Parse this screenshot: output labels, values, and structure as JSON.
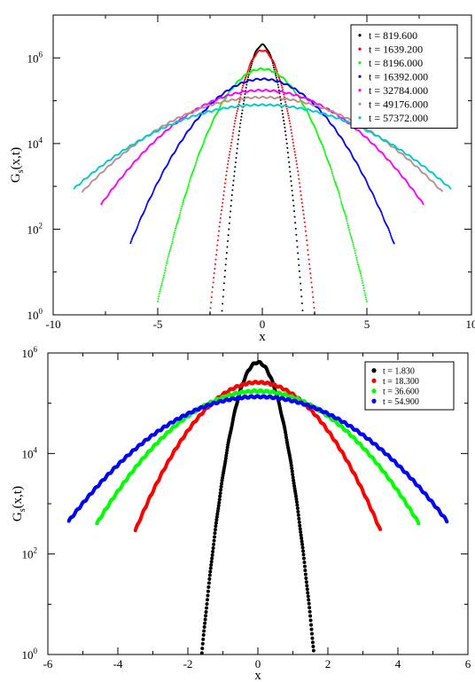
{
  "chart_data": [
    {
      "type": "scatter",
      "xlabel": "x",
      "ylabel": "G_s(x,t)",
      "ylabel_main": "G",
      "ylabel_sub": "s",
      "ylabel_rest": "(x,t)",
      "xlim": [
        -10,
        10
      ],
      "ylim": [
        1,
        10000000
      ],
      "yscale": "log",
      "grid": false,
      "legend_position": "top-right",
      "x_ticks": [
        -10,
        -5,
        0,
        5,
        10
      ],
      "x_tick_labels": [
        "-10",
        "-5",
        "0",
        "5",
        "10"
      ],
      "y_ticks": [
        1,
        100,
        10000,
        1000000
      ],
      "y_tick_labels": [
        "10",
        "10",
        "10",
        "10"
      ],
      "y_tick_exponents": [
        "0",
        "2",
        "4",
        "6"
      ],
      "series": [
        {
          "name": "t = 819.600",
          "color": "#000000",
          "peak": 2000000,
          "sigma": 0.36,
          "xmax": 2.8
        },
        {
          "name": "t = 1639.200",
          "color": "#ff0000",
          "peak": 1500000,
          "sigma": 0.47,
          "xmax": 3.3
        },
        {
          "name": "t = 8196.000",
          "color": "#00ff00",
          "peak": 550000,
          "sigma": 1.0,
          "xmax": 5.0
        },
        {
          "name": "t = 16392.000",
          "color": "#0000ff",
          "peak": 320000,
          "sigma": 1.5,
          "xmax": 6.3
        },
        {
          "name": "t = 32784.000",
          "color": "#ff00ff",
          "peak": 175000,
          "sigma": 2.2,
          "xmax": 7.7
        },
        {
          "name": "t = 49176.000",
          "color": "#bc8f8f",
          "peak": 120000,
          "sigma": 2.7,
          "xmax": 8.6
        },
        {
          "name": "t = 57372.000",
          "color": "#00cccc",
          "peak": 80000,
          "sigma": 3.0,
          "xmax": 9.0
        }
      ]
    },
    {
      "type": "scatter",
      "xlabel": "x",
      "ylabel": "G_s(x,t)",
      "ylabel_main": "G",
      "ylabel_sub": "s",
      "ylabel_rest": "(x,t)",
      "xlim": [
        -6,
        6
      ],
      "ylim": [
        1,
        1000000
      ],
      "yscale": "log",
      "grid": false,
      "legend_position": "top-right",
      "x_ticks": [
        -6,
        -4,
        -2,
        0,
        2,
        4,
        6
      ],
      "x_tick_labels": [
        "-6",
        "-4",
        "-2",
        "0",
        "2",
        "4",
        "6"
      ],
      "y_ticks": [
        1,
        100,
        10000,
        1000000
      ],
      "y_tick_labels": [
        "10",
        "10",
        "10",
        "10"
      ],
      "y_tick_exponents": [
        "0",
        "2",
        "4",
        "6"
      ],
      "series": [
        {
          "name": "t = 1.830",
          "color": "#000000",
          "peak": 650000,
          "sigma": 0.31,
          "xmax": 1.6
        },
        {
          "name": "t = 18.300",
          "color": "#ff0000",
          "peak": 260000,
          "sigma": 0.95,
          "xmax": 3.5
        },
        {
          "name": "t = 36.600",
          "color": "#00ff00",
          "peak": 175000,
          "sigma": 1.32,
          "xmax": 4.6
        },
        {
          "name": "t = 54.900",
          "color": "#0000ff",
          "peak": 135000,
          "sigma": 1.6,
          "xmax": 5.4
        }
      ]
    }
  ]
}
